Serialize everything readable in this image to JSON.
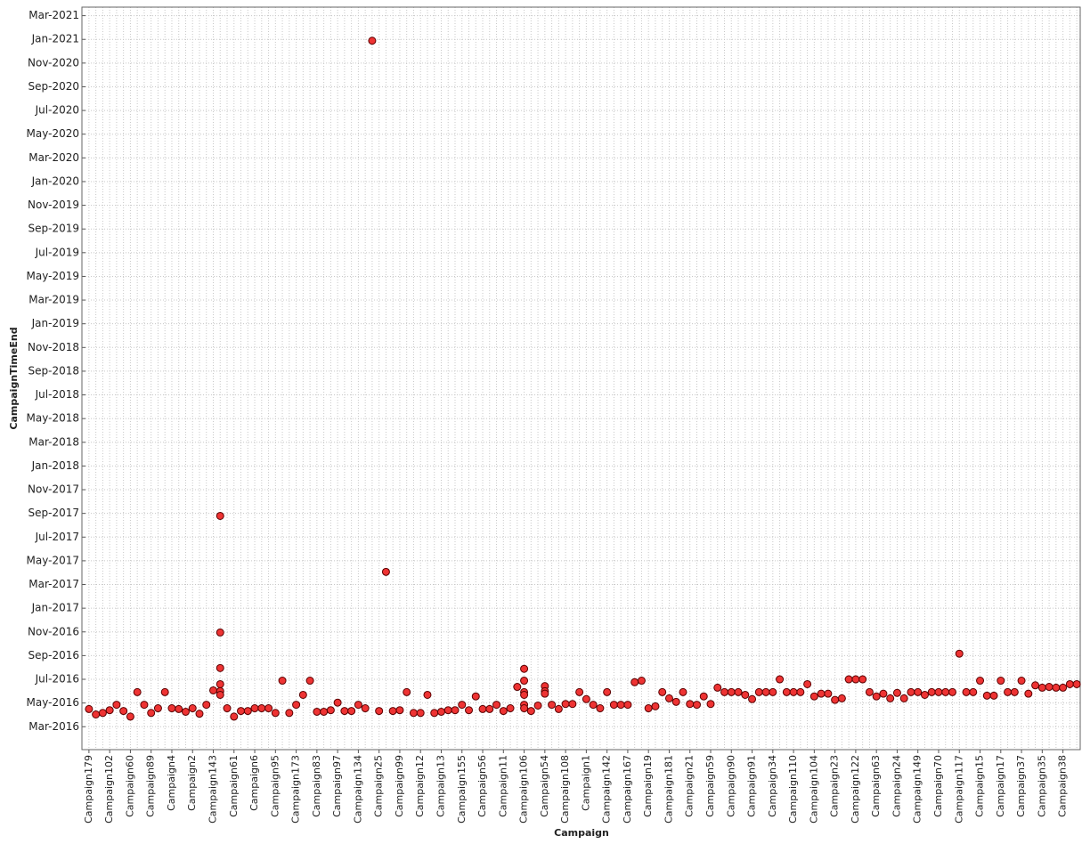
{
  "chart_data": {
    "type": "scatter",
    "x_label": "Campaign",
    "y_label": "CampaignTimeEnd",
    "categories": [
      "Campaign179",
      null,
      null,
      "Campaign102",
      null,
      null,
      "Campaign60",
      null,
      null,
      "Campaign89",
      null,
      null,
      "Campaign4",
      null,
      null,
      "Campaign2",
      null,
      null,
      "Campaign143",
      null,
      null,
      "Campaign61",
      null,
      null,
      "Campaign6",
      null,
      null,
      "Campaign95",
      null,
      null,
      "Campaign173",
      null,
      null,
      "Campaign83",
      null,
      null,
      "Campaign97",
      null,
      null,
      "Campaign134",
      null,
      null,
      "Campaign25",
      null,
      null,
      "Campaign99",
      null,
      null,
      "Campaign12",
      null,
      null,
      "Campaign13",
      null,
      null,
      "Campaign155",
      null,
      null,
      "Campaign56",
      null,
      null,
      "Campaign11",
      null,
      null,
      "Campaign106",
      null,
      null,
      "Campaign54",
      null,
      null,
      "Campaign108",
      null,
      null,
      "Campaign1",
      null,
      null,
      "Campaign142",
      null,
      null,
      "Campaign167",
      null,
      null,
      "Campaign19",
      null,
      null,
      "Campaign181",
      null,
      null,
      "Campaign21",
      null,
      null,
      "Campaign59",
      null,
      null,
      "Campaign90",
      null,
      null,
      "Campaign91",
      null,
      null,
      "Campaign34",
      null,
      null,
      "Campaign110",
      null,
      null,
      "Campaign104",
      null,
      null,
      "Campaign23",
      null,
      null,
      "Campaign122",
      null,
      null,
      "Campaign63",
      null,
      null,
      "Campaign24",
      null,
      null,
      "Campaign149",
      null,
      null,
      "Campaign70",
      null,
      null,
      "Campaign117",
      null,
      null,
      "Campaign15",
      null,
      null,
      "Campaign17",
      null,
      null,
      "Campaign37",
      null,
      null,
      "Campaign35",
      null,
      null,
      "Campaign38",
      null,
      null
    ],
    "series": [
      {
        "color": "#ee3333",
        "values": [
          [
            "2016-04-16"
          ],
          [
            "2016-04-02"
          ],
          [
            "2016-04-06"
          ],
          [
            "2016-04-13"
          ],
          [
            "2016-04-27"
          ],
          [
            "2016-04-11"
          ],
          [
            "2016-03-27"
          ],
          [
            "2016-05-29"
          ],
          [
            "2016-04-27"
          ],
          [
            "2016-04-06"
          ],
          [
            "2016-04-18"
          ],
          [
            "2016-05-29"
          ],
          [
            "2016-04-18"
          ],
          [
            "2016-04-16"
          ],
          [
            "2016-04-09"
          ],
          [
            "2016-04-18"
          ],
          [
            "2016-04-04"
          ],
          [
            "2016-04-27"
          ],
          [
            "2016-06-03"
          ],
          [
            "2017-08-25",
            "2016-10-30",
            "2016-07-30",
            "2016-06-19",
            "2016-06-01",
            "2016-05-22"
          ],
          [
            "2016-04-18"
          ],
          [
            "2016-03-27"
          ],
          [
            "2016-04-11"
          ],
          [
            "2016-04-11"
          ],
          [
            "2016-04-18"
          ],
          [
            "2016-04-18"
          ],
          [
            "2016-04-18"
          ],
          [
            "2016-04-06"
          ],
          [
            "2016-06-28"
          ],
          [
            "2016-04-06"
          ],
          [
            "2016-04-27"
          ],
          [
            "2016-05-22"
          ],
          [
            "2016-06-28"
          ],
          [
            "2016-04-09"
          ],
          [
            "2016-04-09"
          ],
          [
            "2016-04-13"
          ],
          [
            "2016-05-02"
          ],
          [
            "2016-04-11"
          ],
          [
            "2016-04-11"
          ],
          [
            "2016-04-27"
          ],
          [
            "2016-04-18"
          ],
          [
            "2020-12-28"
          ],
          [
            "2016-04-11"
          ],
          [
            "2017-04-03"
          ],
          [
            "2016-04-11"
          ],
          [
            "2016-04-13"
          ],
          [
            "2016-05-29"
          ],
          [
            "2016-04-06"
          ],
          [
            "2016-04-06"
          ],
          [
            "2016-05-22"
          ],
          [
            "2016-04-06"
          ],
          [
            "2016-04-09"
          ],
          [
            "2016-04-13"
          ],
          [
            "2016-04-13"
          ],
          [
            "2016-04-27"
          ],
          [
            "2016-04-13"
          ],
          [
            "2016-05-18"
          ],
          [
            "2016-04-16"
          ],
          [
            "2016-04-16"
          ],
          [
            "2016-04-27"
          ],
          [
            "2016-04-11"
          ],
          [
            "2016-04-18"
          ],
          [
            "2016-06-12"
          ],
          [
            "2016-07-28",
            "2016-06-28",
            "2016-05-29",
            "2016-05-22",
            "2016-04-27",
            "2016-04-18"
          ],
          [
            "2016-04-11"
          ],
          [
            "2016-04-25"
          ],
          [
            "2016-06-14",
            "2016-06-01",
            "2016-05-25"
          ],
          [
            "2016-04-27"
          ],
          [
            "2016-04-16"
          ],
          [
            "2016-04-29"
          ],
          [
            "2016-04-29"
          ],
          [
            "2016-05-29"
          ],
          [
            "2016-05-11"
          ],
          [
            "2016-04-27"
          ],
          [
            "2016-04-18"
          ],
          [
            "2016-05-29"
          ],
          [
            "2016-04-27"
          ],
          [
            "2016-04-27"
          ],
          [
            "2016-04-27"
          ],
          [
            "2016-06-24"
          ],
          [
            "2016-06-28"
          ],
          [
            "2016-04-18"
          ],
          [
            "2016-04-23"
          ],
          [
            "2016-05-29"
          ],
          [
            "2016-05-13"
          ],
          [
            "2016-05-04"
          ],
          [
            "2016-05-29"
          ],
          [
            "2016-04-29"
          ],
          [
            "2016-04-27"
          ],
          [
            "2016-05-18"
          ],
          [
            "2016-04-29"
          ],
          [
            "2016-06-10"
          ],
          [
            "2016-05-29"
          ],
          [
            "2016-05-29"
          ],
          [
            "2016-05-29"
          ],
          [
            "2016-05-22"
          ],
          [
            "2016-05-11"
          ],
          [
            "2016-05-29"
          ],
          [
            "2016-05-29"
          ],
          [
            "2016-05-29"
          ],
          [
            "2016-07-01"
          ],
          [
            "2016-05-29"
          ],
          [
            "2016-05-29"
          ],
          [
            "2016-05-29"
          ],
          [
            "2016-06-19"
          ],
          [
            "2016-05-18"
          ],
          [
            "2016-05-25"
          ],
          [
            "2016-05-25"
          ],
          [
            "2016-05-09"
          ],
          [
            "2016-05-13"
          ],
          [
            "2016-07-01"
          ],
          [
            "2016-07-01"
          ],
          [
            "2016-07-01"
          ],
          [
            "2016-05-29"
          ],
          [
            "2016-05-18"
          ],
          [
            "2016-05-25"
          ],
          [
            "2016-05-13"
          ],
          [
            "2016-05-27"
          ],
          [
            "2016-05-13"
          ],
          [
            "2016-05-29"
          ],
          [
            "2016-05-29"
          ],
          [
            "2016-05-22"
          ],
          [
            "2016-05-29"
          ],
          [
            "2016-05-29"
          ],
          [
            "2016-05-29"
          ],
          [
            "2016-05-29"
          ],
          [
            "2016-09-06"
          ],
          [
            "2016-05-29"
          ],
          [
            "2016-05-29"
          ],
          [
            "2016-06-28"
          ],
          [
            "2016-05-20"
          ],
          [
            "2016-05-20"
          ],
          [
            "2016-06-28"
          ],
          [
            "2016-05-29"
          ],
          [
            "2016-05-29"
          ],
          [
            "2016-06-28"
          ],
          [
            "2016-05-25"
          ],
          [
            "2016-06-16"
          ],
          [
            "2016-06-10"
          ],
          [
            "2016-06-12"
          ],
          [
            "2016-06-10"
          ],
          [
            "2016-06-10"
          ],
          [
            "2016-06-19"
          ],
          [
            "2016-06-19"
          ]
        ]
      }
    ],
    "ylim": [
      "2016-01-03",
      "2021-03-23"
    ],
    "yticks": [
      {
        "value": "2016-03",
        "label": "Mar-2016"
      },
      {
        "value": "2016-05",
        "label": "May-2016"
      },
      {
        "value": "2016-07",
        "label": "Jul-2016"
      },
      {
        "value": "2016-09",
        "label": "Sep-2016"
      },
      {
        "value": "2016-11",
        "label": "Nov-2016"
      },
      {
        "value": "2017-01",
        "label": "Jan-2017"
      },
      {
        "value": "2017-03",
        "label": "Mar-2017"
      },
      {
        "value": "2017-05",
        "label": "May-2017"
      },
      {
        "value": "2017-07",
        "label": "Jul-2017"
      },
      {
        "value": "2017-09",
        "label": "Sep-2017"
      },
      {
        "value": "2017-11",
        "label": "Nov-2017"
      },
      {
        "value": "2018-01",
        "label": "Jan-2018"
      },
      {
        "value": "2018-03",
        "label": "Mar-2018"
      },
      {
        "value": "2018-05",
        "label": "May-2018"
      },
      {
        "value": "2018-07",
        "label": "Jul-2018"
      },
      {
        "value": "2018-09",
        "label": "Sep-2018"
      },
      {
        "value": "2018-11",
        "label": "Nov-2018"
      },
      {
        "value": "2019-01",
        "label": "Jan-2019"
      },
      {
        "value": "2019-03",
        "label": "Mar-2019"
      },
      {
        "value": "2019-05",
        "label": "May-2019"
      },
      {
        "value": "2019-07",
        "label": "Jul-2019"
      },
      {
        "value": "2019-09",
        "label": "Sep-2019"
      },
      {
        "value": "2019-11",
        "label": "Nov-2019"
      },
      {
        "value": "2020-01",
        "label": "Jan-2020"
      },
      {
        "value": "2020-03",
        "label": "Mar-2020"
      },
      {
        "value": "2020-05",
        "label": "May-2020"
      },
      {
        "value": "2020-07",
        "label": "Jul-2020"
      },
      {
        "value": "2020-09",
        "label": "Sep-2020"
      },
      {
        "value": "2020-11",
        "label": "Nov-2020"
      },
      {
        "value": "2021-01",
        "label": "Jan-2021"
      },
      {
        "value": "2021-03",
        "label": "Mar-2021"
      }
    ],
    "grid": true
  }
}
